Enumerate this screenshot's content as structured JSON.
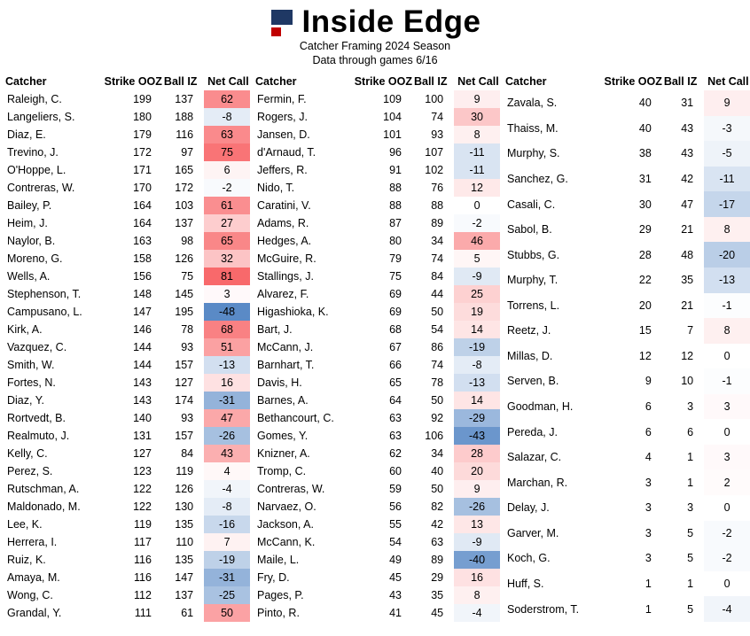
{
  "header": {
    "logo": "inside-edge-two-squares-logo",
    "logo_navy_color": "#1f3864",
    "logo_red_color": "#c00000"
  },
  "chart_data": {
    "type": "table",
    "title": "Inside Edge",
    "subtitle": "Catcher Framing 2024 Season",
    "note": "Data through games 6/16",
    "columns": [
      "Catcher",
      "Strike OOZ",
      "Ball IZ",
      "Net Call"
    ],
    "heatmap": {
      "applies_to": "Net Call",
      "positive_color": "#F8696B",
      "negative_color": "#5A8AC6",
      "zero_color": "#FFFFFF",
      "positive_max": 81,
      "negative_min": -48
    },
    "tables": [
      {
        "rows": [
          [
            "Raleigh, C.",
            199,
            137,
            62
          ],
          [
            "Langeliers, S.",
            180,
            188,
            -8
          ],
          [
            "Diaz, E.",
            179,
            116,
            63
          ],
          [
            "Trevino, J.",
            172,
            97,
            75
          ],
          [
            "O'Hoppe, L.",
            171,
            165,
            6
          ],
          [
            "Contreras, W.",
            170,
            172,
            -2
          ],
          [
            "Bailey, P.",
            164,
            103,
            61
          ],
          [
            "Heim, J.",
            164,
            137,
            27
          ],
          [
            "Naylor, B.",
            163,
            98,
            65
          ],
          [
            "Moreno, G.",
            158,
            126,
            32
          ],
          [
            "Wells, A.",
            156,
            75,
            81
          ],
          [
            "Stephenson, T.",
            148,
            145,
            3
          ],
          [
            "Campusano, L.",
            147,
            195,
            -48
          ],
          [
            "Kirk, A.",
            146,
            78,
            68
          ],
          [
            "Vazquez, C.",
            144,
            93,
            51
          ],
          [
            "Smith, W.",
            144,
            157,
            -13
          ],
          [
            "Fortes, N.",
            143,
            127,
            16
          ],
          [
            "Diaz, Y.",
            143,
            174,
            -31
          ],
          [
            "Rortvedt, B.",
            140,
            93,
            47
          ],
          [
            "Realmuto, J.",
            131,
            157,
            -26
          ],
          [
            "Kelly, C.",
            127,
            84,
            43
          ],
          [
            "Perez, S.",
            123,
            119,
            4
          ],
          [
            "Rutschman, A.",
            122,
            126,
            -4
          ],
          [
            "Maldonado, M.",
            122,
            130,
            -8
          ],
          [
            "Lee, K.",
            119,
            135,
            -16
          ],
          [
            "Herrera, I.",
            117,
            110,
            7
          ],
          [
            "Ruiz, K.",
            116,
            135,
            -19
          ],
          [
            "Amaya, M.",
            116,
            147,
            -31
          ],
          [
            "Wong, C.",
            112,
            137,
            -25
          ],
          [
            "Grandal, Y.",
            111,
            61,
            50
          ]
        ]
      },
      {
        "rows": [
          [
            "Fermin, F.",
            109,
            100,
            9
          ],
          [
            "Rogers, J.",
            104,
            74,
            30
          ],
          [
            "Jansen, D.",
            101,
            93,
            8
          ],
          [
            "d'Arnaud, T.",
            96,
            107,
            -11
          ],
          [
            "Jeffers, R.",
            91,
            102,
            -11
          ],
          [
            "Nido, T.",
            88,
            76,
            12
          ],
          [
            "Caratini, V.",
            88,
            88,
            0
          ],
          [
            "Adams, R.",
            87,
            89,
            -2
          ],
          [
            "Hedges, A.",
            80,
            34,
            46
          ],
          [
            "McGuire, R.",
            79,
            74,
            5
          ],
          [
            "Stallings, J.",
            75,
            84,
            -9
          ],
          [
            "Alvarez, F.",
            69,
            44,
            25
          ],
          [
            "Higashioka, K.",
            69,
            50,
            19
          ],
          [
            "Bart, J.",
            68,
            54,
            14
          ],
          [
            "McCann, J.",
            67,
            86,
            -19
          ],
          [
            "Barnhart, T.",
            66,
            74,
            -8
          ],
          [
            "Davis, H.",
            65,
            78,
            -13
          ],
          [
            "Barnes, A.",
            64,
            50,
            14
          ],
          [
            "Bethancourt, C.",
            63,
            92,
            -29
          ],
          [
            "Gomes, Y.",
            63,
            106,
            -43
          ],
          [
            "Knizner, A.",
            62,
            34,
            28
          ],
          [
            "Tromp, C.",
            60,
            40,
            20
          ],
          [
            "Contreras, W.",
            59,
            50,
            9
          ],
          [
            "Narvaez, O.",
            56,
            82,
            -26
          ],
          [
            "Jackson, A.",
            55,
            42,
            13
          ],
          [
            "McCann, K.",
            54,
            63,
            -9
          ],
          [
            "Maile, L.",
            49,
            89,
            -40
          ],
          [
            "Fry, D.",
            45,
            29,
            16
          ],
          [
            "Pages, P.",
            43,
            35,
            8
          ],
          [
            "Pinto, R.",
            41,
            45,
            -4
          ]
        ]
      },
      {
        "rows": [
          [
            "Zavala, S.",
            40,
            31,
            9
          ],
          [
            "Thaiss, M.",
            40,
            43,
            -3
          ],
          [
            "Murphy, S.",
            38,
            43,
            -5
          ],
          [
            "Sanchez, G.",
            31,
            42,
            -11
          ],
          [
            "Casali, C.",
            30,
            47,
            -17
          ],
          [
            "Sabol, B.",
            29,
            21,
            8
          ],
          [
            "Stubbs, G.",
            28,
            48,
            -20
          ],
          [
            "Murphy, T.",
            22,
            35,
            -13
          ],
          [
            "Torrens, L.",
            20,
            21,
            -1
          ],
          [
            "Reetz, J.",
            15,
            7,
            8
          ],
          [
            "Millas, D.",
            12,
            12,
            0
          ],
          [
            "Serven, B.",
            9,
            10,
            -1
          ],
          [
            "Goodman, H.",
            6,
            3,
            3
          ],
          [
            "Pereda, J.",
            6,
            6,
            0
          ],
          [
            "Salazar, C.",
            4,
            1,
            3
          ],
          [
            "Marchan, R.",
            3,
            1,
            2
          ],
          [
            "Delay, J.",
            3,
            3,
            0
          ],
          [
            "Garver, M.",
            3,
            5,
            -2
          ],
          [
            "Koch, G.",
            3,
            5,
            -2
          ],
          [
            "Huff, S.",
            1,
            1,
            0
          ],
          [
            "Soderstrom, T.",
            1,
            5,
            -4
          ]
        ]
      }
    ]
  }
}
